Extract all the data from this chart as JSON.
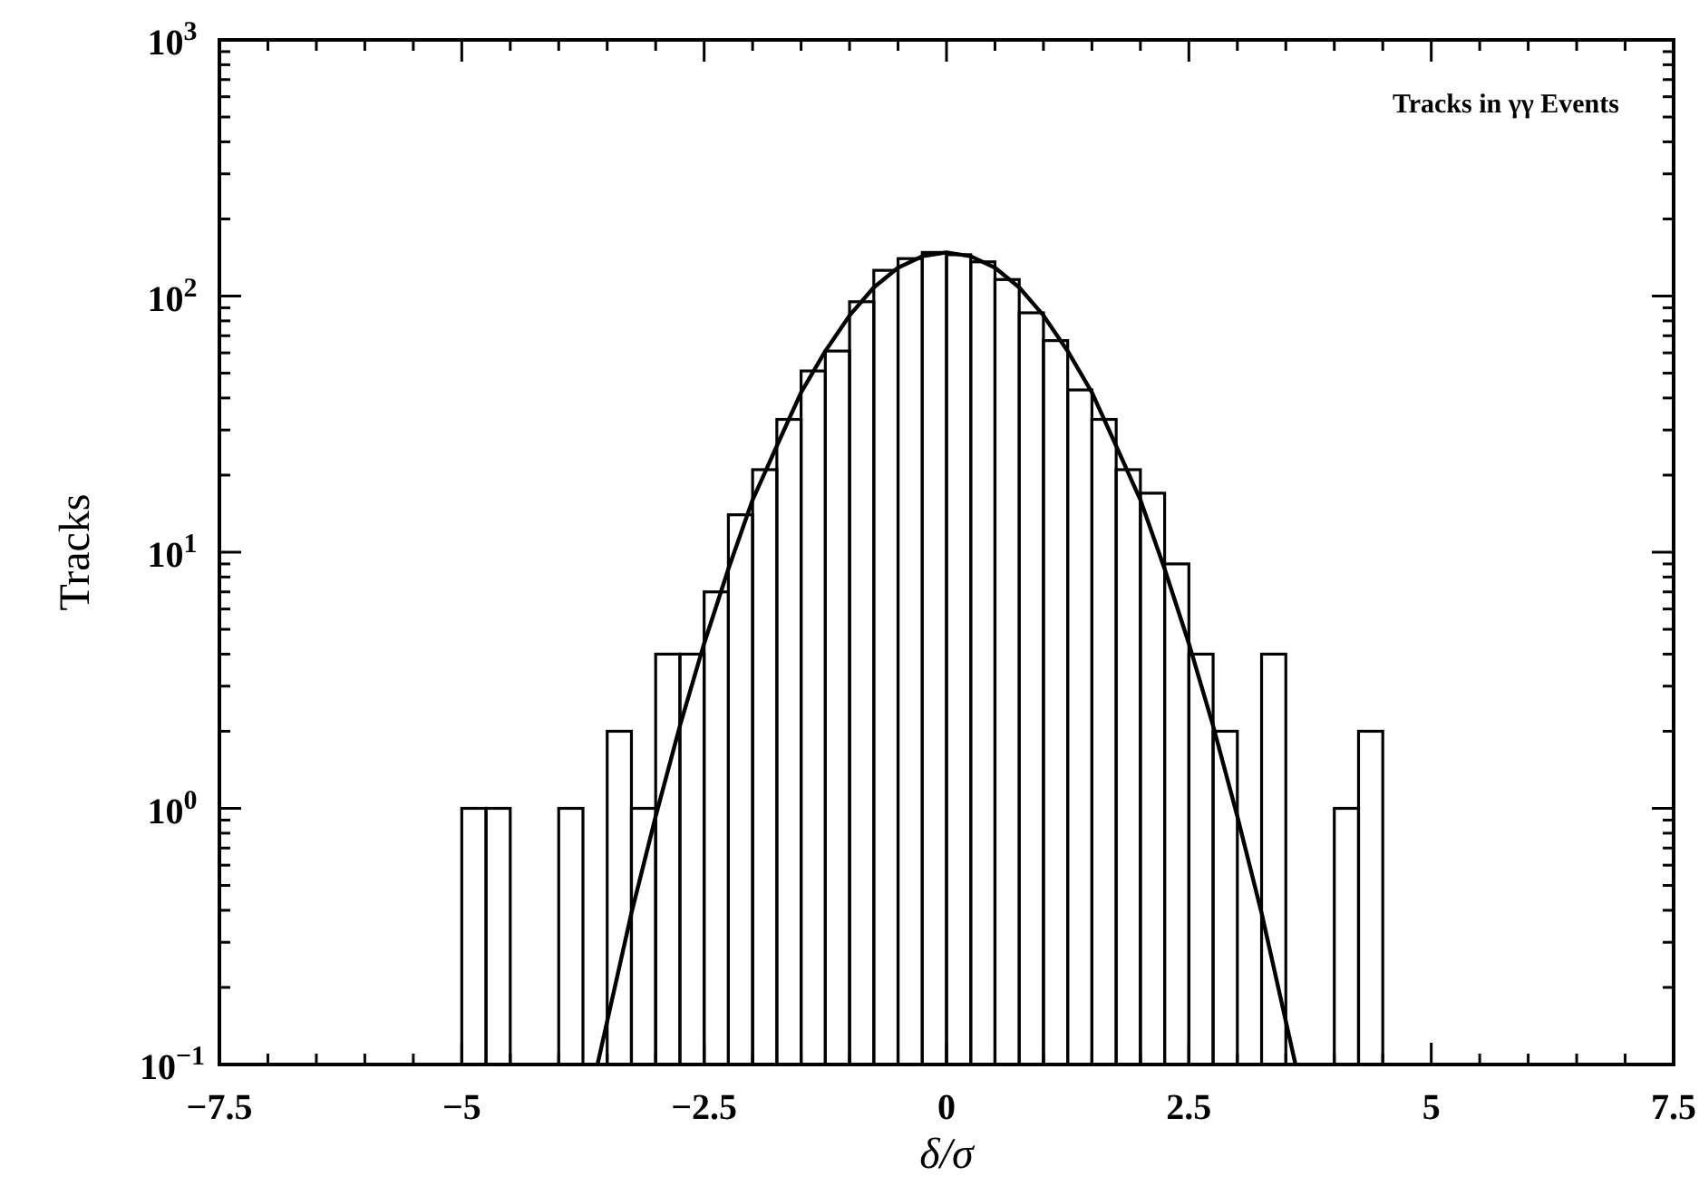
{
  "chart_data": {
    "type": "histogram",
    "title": "Tracks in γγ Events",
    "xlabel": "δ/σ",
    "ylabel": "Tracks",
    "log": "y",
    "color": "#000000",
    "bins": [
      -5,
      -4.75,
      -4.5,
      -4.25,
      -4,
      -3.75,
      -3.5,
      -3.25,
      -3,
      -2.75,
      -2.5,
      -2.25,
      -2,
      -1.75,
      -1.5,
      -1.25,
      -1,
      -0.75,
      -0.5,
      -0.25,
      0,
      0.25,
      0.5,
      0.75,
      1,
      1.25,
      1.5,
      1.75,
      2,
      2.25,
      2.5,
      2.75,
      3,
      3.25,
      3.5,
      3.75,
      4,
      4.25,
      4.5
    ],
    "values": [
      1,
      1,
      null,
      null,
      1,
      null,
      2,
      1,
      4,
      4,
      7,
      14,
      21,
      33,
      51,
      61,
      95,
      126,
      140,
      148,
      145,
      136,
      116,
      86,
      67,
      43,
      33,
      21,
      17,
      9,
      4,
      2,
      null,
      4,
      null,
      null,
      1,
      2
    ],
    "series": [
      {
        "type": "line",
        "color": "#000000",
        "x": [
          -3.6,
          -3.25,
          -3,
          -2.75,
          -2.5,
          -2.25,
          -2,
          -1.75,
          -1.5,
          -1.25,
          -1,
          -0.75,
          -0.5,
          -0.25,
          0,
          0.25,
          0.5,
          0.75,
          1,
          1.25,
          1.5,
          1.75,
          2,
          2.25,
          2.5,
          2.75,
          3,
          3.25,
          3.6
        ],
        "values": [
          0.1,
          0.39,
          0.93,
          2.1,
          4.4,
          8.6,
          16,
          26,
          42,
          61,
          84,
          108,
          129,
          143,
          148,
          143,
          129,
          108,
          84,
          61,
          42,
          26,
          16,
          8.6,
          4.4,
          2.1,
          0.93,
          0.39,
          0.1
        ]
      }
    ],
    "xlim": [
      -7.5,
      7.5
    ],
    "xticks": [
      {
        "value": -7.5,
        "label": "−7.5"
      },
      {
        "value": -7,
        "label": null
      },
      {
        "value": -6.5,
        "label": null
      },
      {
        "value": -6,
        "label": null
      },
      {
        "value": -5.5,
        "label": null
      },
      {
        "value": -5,
        "label": "−5"
      },
      {
        "value": -4.5,
        "label": null
      },
      {
        "value": -4,
        "label": null
      },
      {
        "value": -3.5,
        "label": null
      },
      {
        "value": -3,
        "label": null
      },
      {
        "value": -2.5,
        "label": "−2.5"
      },
      {
        "value": -2,
        "label": null
      },
      {
        "value": -1.5,
        "label": null
      },
      {
        "value": -1,
        "label": null
      },
      {
        "value": -0.5,
        "label": null
      },
      0,
      {
        "value": 0.5,
        "label": null
      },
      {
        "value": 1,
        "label": null
      },
      {
        "value": 1.5,
        "label": null
      },
      {
        "value": 2,
        "label": null
      },
      2.5,
      {
        "value": 3,
        "label": null
      },
      {
        "value": 3.5,
        "label": null
      },
      {
        "value": 4,
        "label": null
      },
      {
        "value": 4.5,
        "label": null
      },
      5,
      {
        "value": 5.5,
        "label": null
      },
      {
        "value": 6,
        "label": null
      },
      {
        "value": 6.5,
        "label": null
      },
      {
        "value": 7,
        "label": null
      },
      7.5
    ],
    "ylim": [
      0.1,
      1000
    ],
    "yticks": [
      {
        "value": 0.1,
        "label": "10$^{−1}$"
      },
      {
        "value": 0.2,
        "label": null
      },
      {
        "value": 0.3,
        "label": null
      },
      {
        "value": 0.4,
        "label": null
      },
      {
        "value": 0.5,
        "label": null
      },
      {
        "value": 0.6,
        "label": null
      },
      {
        "value": 0.7,
        "label": null
      },
      {
        "value": 0.8,
        "label": null
      },
      {
        "value": 0.9,
        "label": null
      },
      {
        "value": 1,
        "label": "10$^{0}$"
      },
      {
        "value": 2,
        "label": null
      },
      {
        "value": 3,
        "label": null
      },
      {
        "value": 4,
        "label": null
      },
      {
        "value": 5,
        "label": null
      },
      {
        "value": 6,
        "label": null
      },
      {
        "value": 7,
        "label": null
      },
      {
        "value": 8,
        "label": null
      },
      {
        "value": 9,
        "label": null
      },
      {
        "value": 10,
        "label": "10$^{1}$"
      },
      {
        "value": 20,
        "label": null
      },
      {
        "value": 30,
        "label": null
      },
      {
        "value": 40,
        "label": null
      },
      {
        "value": 50,
        "label": null
      },
      {
        "value": 60,
        "label": null
      },
      {
        "value": 70,
        "label": null
      },
      {
        "value": 80,
        "label": null
      },
      {
        "value": 90,
        "label": null
      },
      {
        "value": 100,
        "label": "10$^{2}$"
      },
      {
        "value": 200,
        "label": null
      },
      {
        "value": 300,
        "label": null
      },
      {
        "value": 400,
        "label": null
      },
      {
        "value": 500,
        "label": null
      },
      {
        "value": 600,
        "label": null
      },
      {
        "value": 700,
        "label": null
      },
      {
        "value": 800,
        "label": null
      },
      {
        "value": 900,
        "label": null
      },
      {
        "value": 1000,
        "label": "10$^{3}$"
      }
    ],
    "grid": false
  }
}
